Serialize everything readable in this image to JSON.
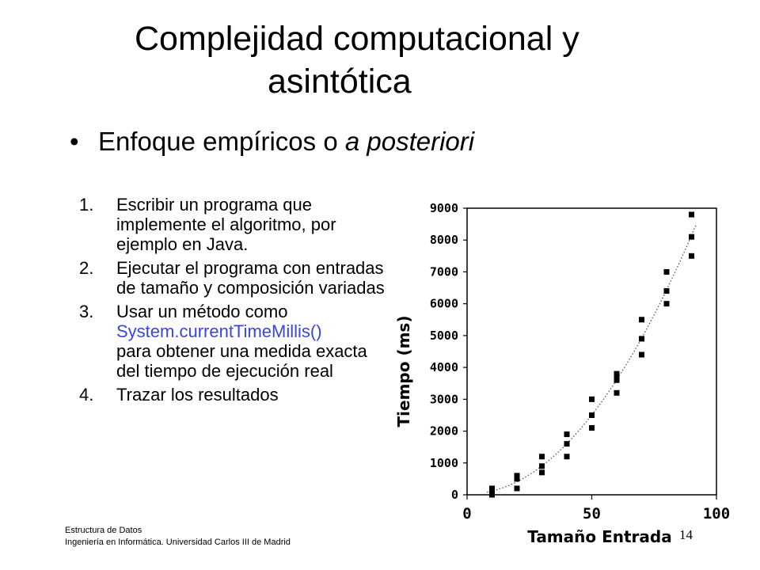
{
  "slide": {
    "title_line1": "Complejidad computacional y",
    "title_line2": "asintótica",
    "bullet_marker": "•",
    "bullet_text": "Enfoque empíricos o ",
    "bullet_italic": "a posteriori",
    "steps": [
      {
        "num": "1.",
        "text": "Escribir un programa que implemente el algoritmo, por ejemplo en Java."
      },
      {
        "num": "2.",
        "text": "Ejecutar el programa con entradas de tamaño y composición variadas"
      },
      {
        "num": "3.",
        "text_before": "Usar un método como",
        "method": "System.currentTimeMillis()",
        "text_after": "para obtener una medida exacta del tiempo de ejecución real"
      },
      {
        "num": "4.",
        "text": "Trazar los resultados"
      }
    ],
    "footer_line1": "Estructura de Datos",
    "footer_line2": "Ingeniería en Informática. Universidad Carlos III de Madrid",
    "page_number": "14"
  },
  "colors": {
    "method_link": "#3a46d6",
    "markers": "#000000",
    "trend": "#555555"
  },
  "chart_data": {
    "type": "scatter",
    "xlabel": "Tamaño Entrada",
    "ylabel": "Tiempo (ms)",
    "xlim": [
      0,
      100
    ],
    "ylim": [
      0,
      9000
    ],
    "xticks": [
      0,
      50,
      100
    ],
    "yticks": [
      0,
      1000,
      2000,
      3000,
      4000,
      5000,
      6000,
      7000,
      8000,
      9000
    ],
    "grid": false,
    "trendline": "dotted curve",
    "points": [
      [
        10,
        0
      ],
      [
        10,
        100
      ],
      [
        10,
        200
      ],
      [
        20,
        200
      ],
      [
        20,
        500
      ],
      [
        20,
        600
      ],
      [
        30,
        700
      ],
      [
        30,
        900
      ],
      [
        30,
        1200
      ],
      [
        40,
        1200
      ],
      [
        40,
        1600
      ],
      [
        40,
        1900
      ],
      [
        50,
        2100
      ],
      [
        50,
        2500
      ],
      [
        50,
        3000
      ],
      [
        60,
        3200
      ],
      [
        60,
        3600
      ],
      [
        60,
        3700
      ],
      [
        60,
        3800
      ],
      [
        70,
        4400
      ],
      [
        70,
        4900
      ],
      [
        70,
        5500
      ],
      [
        80,
        6000
      ],
      [
        80,
        6400
      ],
      [
        80,
        7000
      ],
      [
        90,
        7500
      ],
      [
        90,
        8100
      ],
      [
        90,
        8800
      ]
    ]
  }
}
